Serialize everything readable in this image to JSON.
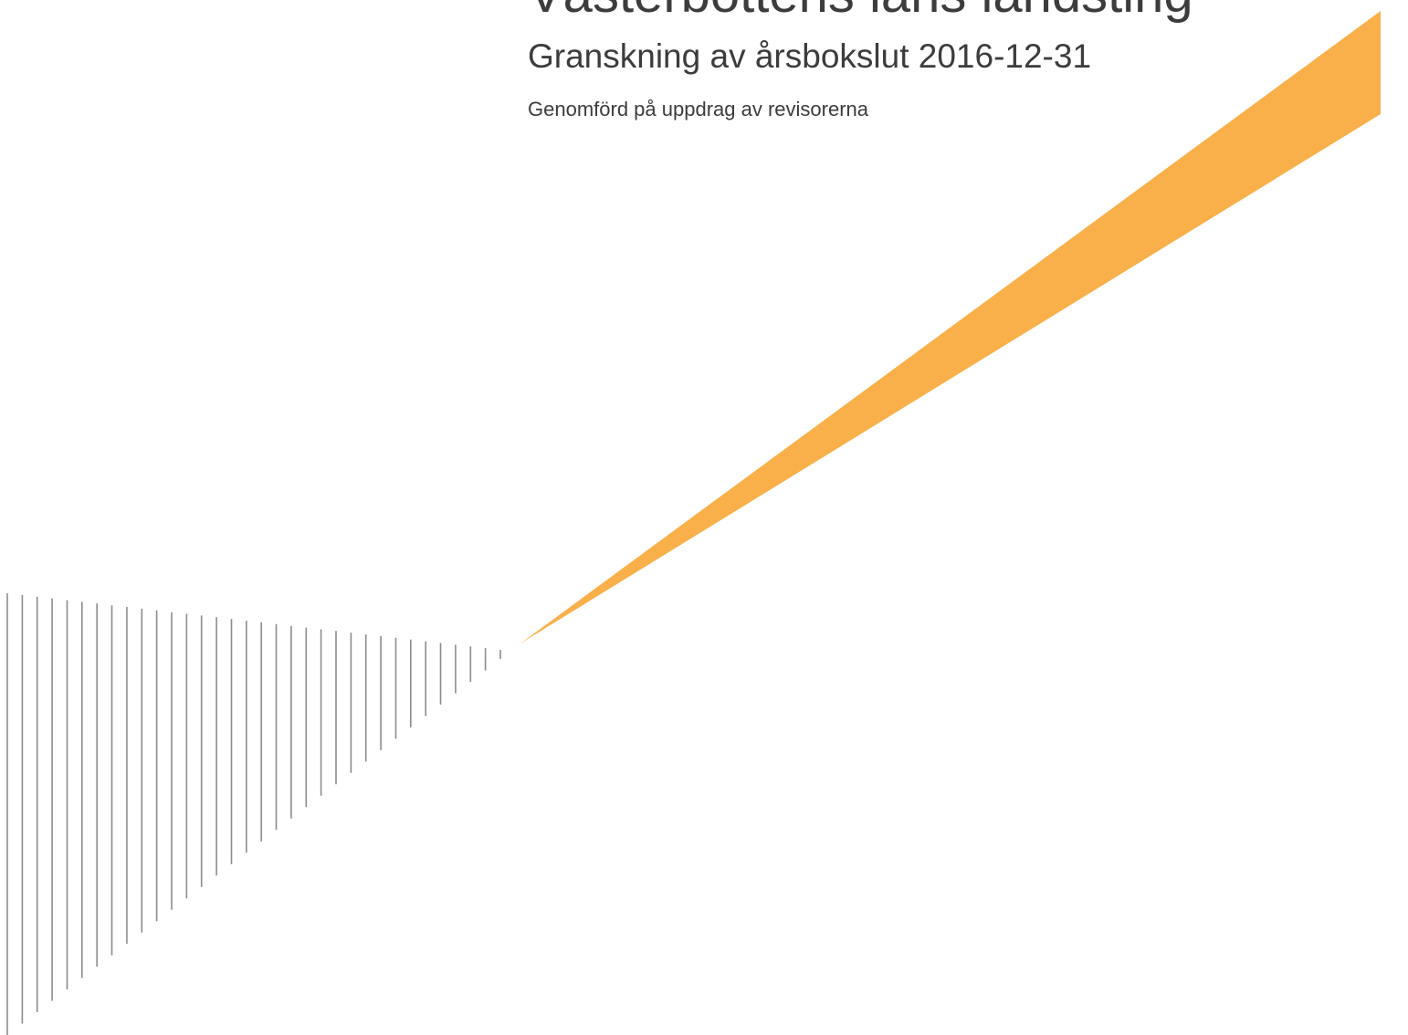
{
  "document": {
    "title": "Västerbottens läns landsting",
    "subtitle": "Granskning av årsbokslut 2016-12-31",
    "byline": "Genomförd på uppdrag av revisorerna"
  },
  "graphic": {
    "beam_color": "#f9b04a",
    "stripe_color": "#8c8c8c",
    "icon": "perspective-stripes-and-orange-beam"
  }
}
